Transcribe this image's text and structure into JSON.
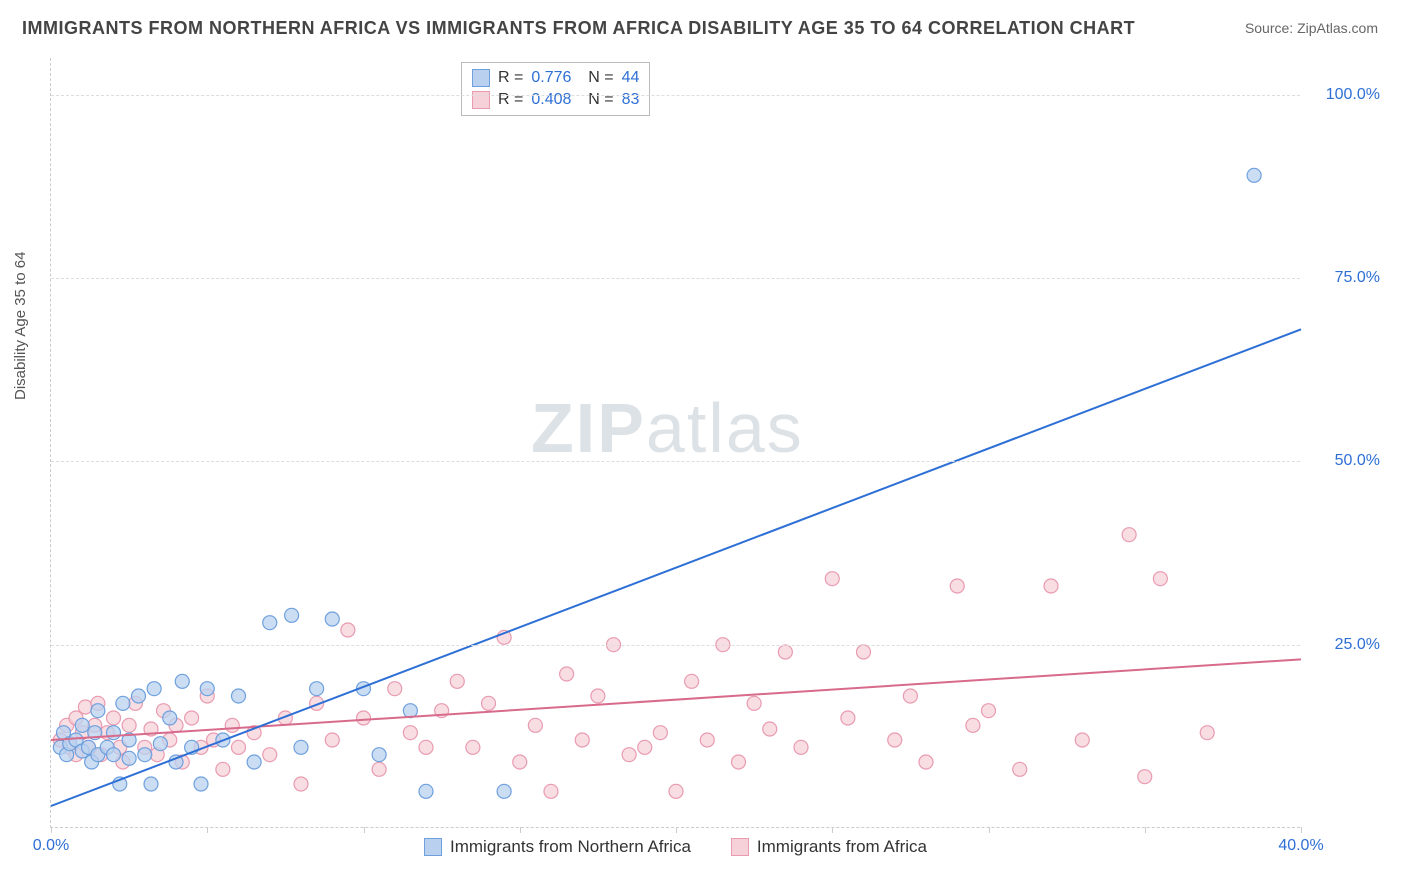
{
  "title": "IMMIGRANTS FROM NORTHERN AFRICA VS IMMIGRANTS FROM AFRICA DISABILITY AGE 35 TO 64 CORRELATION CHART",
  "source": "Source: ZipAtlas.com",
  "ylabel": "Disability Age 35 to 64",
  "watermark_bold": "ZIP",
  "watermark_rest": "atlas",
  "chart": {
    "type": "scatter+line",
    "background_color": "#ffffff",
    "grid_color": "#dddddd",
    "xlim": [
      0,
      40
    ],
    "ylim": [
      0,
      105
    ],
    "yticks": [
      25,
      50,
      75,
      100
    ],
    "ytick_labels": [
      "25.0%",
      "50.0%",
      "75.0%",
      "100.0%"
    ],
    "xticks": [
      0,
      5,
      10,
      15,
      20,
      25,
      30,
      35,
      40
    ],
    "xtick_labels": {
      "0": "0.0%",
      "40": "40.0%"
    },
    "point_radius": 7,
    "point_stroke_width": 1.2,
    "line_width": 2,
    "title_fontsize": 18,
    "label_fontsize": 15,
    "tick_fontsize": 16,
    "tick_color": "#2e6fd6",
    "series": [
      {
        "id": "northern_africa",
        "label": "Immigrants from Northern Africa",
        "R": "0.776",
        "N": "44",
        "color_fill": "#b9d1ef",
        "color_stroke": "#6ea0de",
        "line_color": "#2e6fd6",
        "line_p1": [
          0,
          3
        ],
        "line_p2": [
          40,
          68
        ],
        "points": [
          [
            0.3,
            11
          ],
          [
            0.4,
            13
          ],
          [
            0.5,
            10
          ],
          [
            0.6,
            11.5
          ],
          [
            0.8,
            12
          ],
          [
            1.0,
            10.5
          ],
          [
            1.0,
            14
          ],
          [
            1.2,
            11
          ],
          [
            1.3,
            9
          ],
          [
            1.4,
            13
          ],
          [
            1.5,
            10
          ],
          [
            1.5,
            16
          ],
          [
            1.8,
            11
          ],
          [
            2.0,
            10
          ],
          [
            2.0,
            13
          ],
          [
            2.2,
            6
          ],
          [
            2.3,
            17
          ],
          [
            2.5,
            9.5
          ],
          [
            2.5,
            12
          ],
          [
            2.8,
            18
          ],
          [
            3.0,
            10
          ],
          [
            3.2,
            6
          ],
          [
            3.3,
            19
          ],
          [
            3.5,
            11.5
          ],
          [
            3.8,
            15
          ],
          [
            4.0,
            9
          ],
          [
            4.2,
            20
          ],
          [
            4.5,
            11
          ],
          [
            4.8,
            6
          ],
          [
            5.0,
            19
          ],
          [
            5.5,
            12
          ],
          [
            6.0,
            18
          ],
          [
            6.5,
            9
          ],
          [
            7.0,
            28
          ],
          [
            7.7,
            29
          ],
          [
            8.0,
            11
          ],
          [
            8.5,
            19
          ],
          [
            9.0,
            28.5
          ],
          [
            10.0,
            19
          ],
          [
            10.5,
            10
          ],
          [
            11.5,
            16
          ],
          [
            12.0,
            5
          ],
          [
            14.5,
            5
          ],
          [
            38.5,
            89
          ]
        ]
      },
      {
        "id": "africa",
        "label": "Immigrants from Africa",
        "R": "0.408",
        "N": "83",
        "color_fill": "#f6d1da",
        "color_stroke": "#e99bb0",
        "line_color": "#d86a8b",
        "line_p1": [
          0,
          12
        ],
        "line_p2": [
          40,
          23
        ],
        "points": [
          [
            0.3,
            12
          ],
          [
            0.5,
            14
          ],
          [
            0.6,
            11
          ],
          [
            0.8,
            15
          ],
          [
            0.8,
            10
          ],
          [
            1.0,
            13
          ],
          [
            1.1,
            16.5
          ],
          [
            1.2,
            11
          ],
          [
            1.4,
            14
          ],
          [
            1.5,
            17
          ],
          [
            1.6,
            10
          ],
          [
            1.8,
            13
          ],
          [
            2.0,
            15
          ],
          [
            2.2,
            11
          ],
          [
            2.3,
            9
          ],
          [
            2.5,
            14
          ],
          [
            2.7,
            17
          ],
          [
            3.0,
            11
          ],
          [
            3.2,
            13.5
          ],
          [
            3.4,
            10
          ],
          [
            3.6,
            16
          ],
          [
            3.8,
            12
          ],
          [
            4.0,
            14
          ],
          [
            4.2,
            9
          ],
          [
            4.5,
            15
          ],
          [
            4.8,
            11
          ],
          [
            5.0,
            18
          ],
          [
            5.2,
            12
          ],
          [
            5.5,
            8
          ],
          [
            5.8,
            14
          ],
          [
            6.0,
            11
          ],
          [
            6.5,
            13
          ],
          [
            7.0,
            10
          ],
          [
            7.5,
            15
          ],
          [
            8.0,
            6
          ],
          [
            8.5,
            17
          ],
          [
            9.0,
            12
          ],
          [
            9.5,
            27
          ],
          [
            10.0,
            15
          ],
          [
            10.5,
            8
          ],
          [
            11.0,
            19
          ],
          [
            11.5,
            13
          ],
          [
            12.0,
            11
          ],
          [
            12.5,
            16
          ],
          [
            13.0,
            20
          ],
          [
            13.5,
            11
          ],
          [
            14.0,
            17
          ],
          [
            14.5,
            26
          ],
          [
            15.0,
            9
          ],
          [
            15.5,
            14
          ],
          [
            16.0,
            5
          ],
          [
            16.5,
            21
          ],
          [
            17.0,
            12
          ],
          [
            17.5,
            18
          ],
          [
            18.0,
            25
          ],
          [
            18.5,
            10
          ],
          [
            19.0,
            11
          ],
          [
            19.5,
            13
          ],
          [
            20.0,
            5
          ],
          [
            20.5,
            20
          ],
          [
            21.0,
            12
          ],
          [
            21.5,
            25
          ],
          [
            22.0,
            9
          ],
          [
            22.5,
            17
          ],
          [
            23.0,
            13.5
          ],
          [
            23.5,
            24
          ],
          [
            24.0,
            11
          ],
          [
            25.0,
            34
          ],
          [
            25.5,
            15
          ],
          [
            26.0,
            24
          ],
          [
            27.0,
            12
          ],
          [
            27.5,
            18
          ],
          [
            28.0,
            9
          ],
          [
            29.0,
            33
          ],
          [
            29.5,
            14
          ],
          [
            30.0,
            16
          ],
          [
            31.0,
            8
          ],
          [
            32.0,
            33
          ],
          [
            33.0,
            12
          ],
          [
            34.5,
            40
          ],
          [
            35.0,
            7
          ],
          [
            35.5,
            34
          ],
          [
            37.0,
            13
          ]
        ]
      }
    ]
  }
}
